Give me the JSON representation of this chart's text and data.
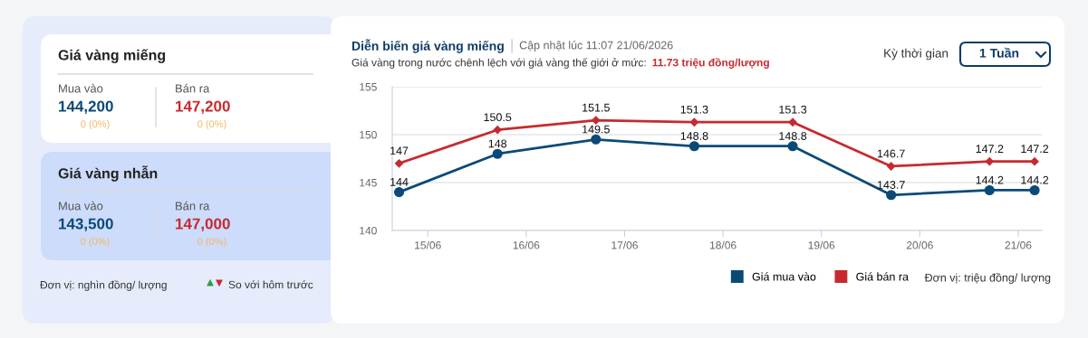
{
  "chart_data": [
    {
      "type": "other",
      "annotations": [
        "Giá vàng miếng",
        "Mua vào",
        "144,200",
        "0 (0%)",
        "Bán ra",
        "147,200",
        "0 (0%)",
        "Giá vàng nhẫn",
        "Mua vào",
        "143,500",
        "0 (0%)",
        "Bán ra",
        "147,000",
        "0 (0%)",
        "Đơn vị: nghìn đồng/ lượng",
        "So với hôm trước"
      ]
    },
    {
      "type": "line",
      "title": "Diễn biến giá vàng miếng",
      "subtitle": "Giá vàng trong nước chênh lệch với giá vàng thế giới ở mức:",
      "annotations": [
        "Cập nhật lúc 11:07 21/06/2026",
        "11.73 triệu đồng/lượng",
        "Kỳ thời gian",
        "1 Tuần",
        "Đơn vị: triệu đồng/ lượng"
      ],
      "x": [
        "2026-06-14T17:00",
        "2026-06-15T17:00",
        "2026-06-16T17:00",
        "2026-06-17T17:00",
        "2026-06-18T17:00",
        "2026-06-19T17:00",
        "2026-06-20T17:00",
        "2026-06-21T04:00"
      ],
      "series": [
        {
          "name": "Giá mua vào",
          "color": "#0b4a78",
          "marker": "circle",
          "values": [
            144,
            148,
            149.5,
            148.8,
            148.8,
            143.7,
            144.2,
            144.2
          ]
        },
        {
          "name": "Giá bán ra",
          "color": "#c62a2f",
          "marker": "diamond",
          "values": [
            147,
            150.5,
            151.5,
            151.3,
            151.3,
            146.7,
            147.2,
            147.2
          ]
        }
      ],
      "xlim": [
        "2026-06-14T15:20",
        "2026-06-21T05:45"
      ],
      "ylim": [
        140,
        155
      ],
      "xticks": [
        {
          "value": "2026-06-15",
          "label": "15/06"
        },
        {
          "value": "2026-06-16",
          "label": "16/06"
        },
        {
          "value": "2026-06-17",
          "label": "17/06"
        },
        {
          "value": "2026-06-18",
          "label": "18/06"
        },
        {
          "value": "2026-06-19",
          "label": "19/06"
        },
        {
          "value": "2026-06-20",
          "label": "20/06"
        },
        {
          "value": "2026-06-21",
          "label": "21/06"
        }
      ],
      "yticks": [
        140,
        145,
        150,
        155
      ],
      "grid": "y",
      "legend": "bottom right",
      "data_labels": true,
      "line_style": "solid"
    }
  ]
}
